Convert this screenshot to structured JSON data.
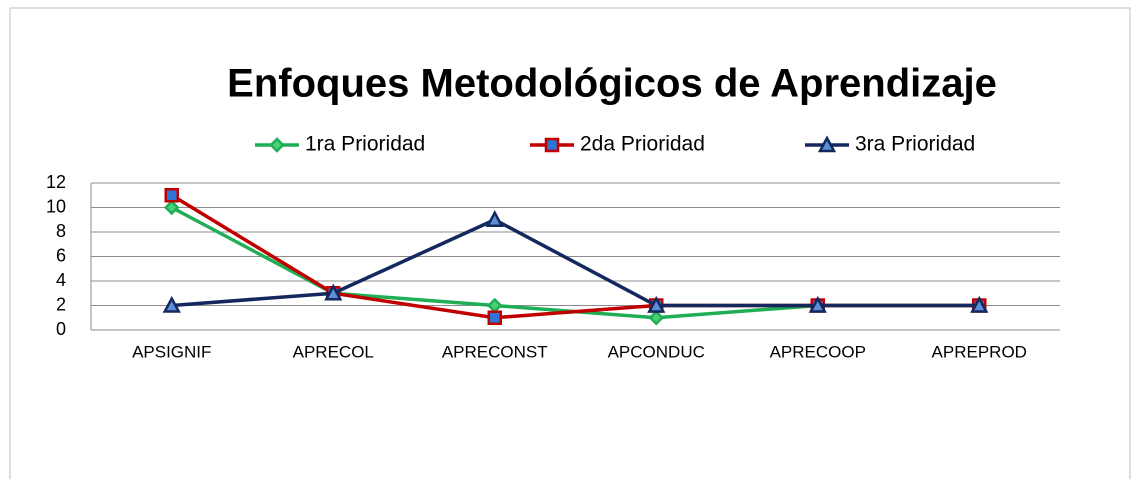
{
  "chart_data": {
    "type": "line",
    "title": "Enfoques Metodológicos de Aprendizaje",
    "categories": [
      "APSIGNIF",
      "APRECOL",
      "APRECONST",
      "APCONDUC",
      "APRECOOP",
      "APREPROD"
    ],
    "series": [
      {
        "name": "1ra Prioridad",
        "color": "#1fae55",
        "marker": "diamond",
        "values": [
          10,
          3,
          2,
          1,
          2,
          2
        ]
      },
      {
        "name": "2da Prioridad",
        "color": "#c00000",
        "marker": "square",
        "values": [
          11,
          3,
          1,
          2,
          2,
          2
        ]
      },
      {
        "name": "3ra Prioridad",
        "color": "#14285e",
        "marker": "triangle",
        "values": [
          2,
          3,
          9,
          2,
          2,
          2
        ]
      }
    ],
    "ylim": [
      0,
      12
    ],
    "yticks": [
      0,
      2,
      4,
      6,
      8,
      10,
      12
    ],
    "grid": true,
    "legend": "top"
  }
}
